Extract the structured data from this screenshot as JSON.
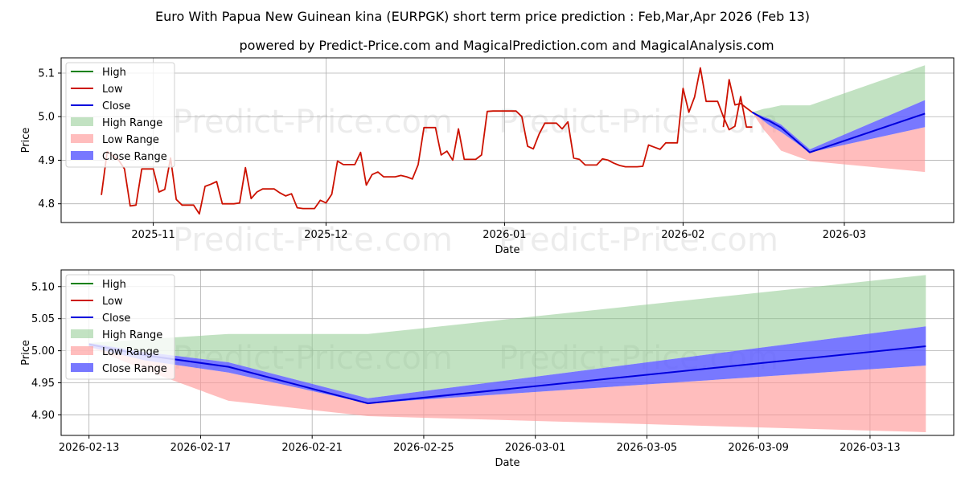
{
  "title": "Euro With Papua New Guinean kina (EURPGK) short term price prediction : Feb,Mar,Apr 2026 (Feb 13)",
  "subtitle": "powered by Predict-Price.com and MagicalPrediction.com and MagicalAnalysis.com",
  "watermark": "Predict-Price.com",
  "colors": {
    "high": "#008000",
    "low": "#cc1100",
    "close": "#0000dd",
    "high_range": "#8fcb8f",
    "low_range": "#ff9a9a",
    "close_range": "#6060ff"
  },
  "chart_data": [
    {
      "type": "line",
      "panel": "top",
      "xlabel": "Date",
      "ylabel": "Price",
      "x_range": [
        "2025-10-16",
        "2026-03-20"
      ],
      "ylim": [
        4.757,
        5.135
      ],
      "yticks": [
        4.8,
        4.9,
        5.0,
        5.1
      ],
      "ytick_labels": [
        "4.8",
        "4.9",
        "5.0",
        "5.1"
      ],
      "xticks": [
        "2025-11-01",
        "2025-12-01",
        "2026-01-01",
        "2026-02-01",
        "2026-03-01"
      ],
      "xtick_labels": [
        "2025-11",
        "2025-12",
        "2026-01",
        "2026-02",
        "2026-03"
      ],
      "grid": true,
      "legend": {
        "location": "top-left",
        "entries": [
          {
            "label": "High",
            "kind": "line",
            "color_key": "high"
          },
          {
            "label": "Low",
            "kind": "line",
            "color_key": "low"
          },
          {
            "label": "Close",
            "kind": "line",
            "color_key": "close"
          },
          {
            "label": "High Range",
            "kind": "patch",
            "color_key": "high_range"
          },
          {
            "label": "Low Range",
            "kind": "patch",
            "color_key": "low_range"
          },
          {
            "label": "Close Range",
            "kind": "patch",
            "color_key": "close_range"
          }
        ]
      },
      "history": {
        "x": [
          "2025-10-23",
          "2025-10-24",
          "2025-10-25",
          "2025-10-26",
          "2025-10-27",
          "2025-10-28",
          "2025-10-29",
          "2025-10-30",
          "2025-10-31",
          "2025-11-01",
          "2025-11-02",
          "2025-11-03",
          "2025-11-04",
          "2025-11-05",
          "2025-11-06",
          "2025-11-07",
          "2025-11-08",
          "2025-11-09",
          "2025-11-10",
          "2025-11-11",
          "2025-11-12",
          "2025-11-13",
          "2025-11-14",
          "2025-11-15",
          "2025-11-16",
          "2025-11-17",
          "2025-11-18",
          "2025-11-19",
          "2025-11-20",
          "2025-11-21",
          "2025-11-22",
          "2025-11-23",
          "2025-11-24",
          "2025-11-25",
          "2025-11-26",
          "2025-11-27",
          "2025-11-28",
          "2025-11-29",
          "2025-11-30",
          "2025-12-01",
          "2025-12-02",
          "2025-12-03",
          "2025-12-04",
          "2025-12-05",
          "2025-12-06",
          "2025-12-07",
          "2025-12-08",
          "2025-12-09",
          "2025-12-10",
          "2025-12-11",
          "2025-12-12",
          "2025-12-13",
          "2025-12-14",
          "2025-12-15",
          "2025-12-16",
          "2025-12-17",
          "2025-12-18",
          "2025-12-19",
          "2025-12-20",
          "2025-12-21",
          "2025-12-22",
          "2025-12-23",
          "2025-12-24",
          "2025-12-25",
          "2025-12-26",
          "2025-12-27",
          "2025-12-28",
          "2025-12-29",
          "2025-12-30",
          "2025-12-31",
          "2026-01-01",
          "2026-01-02",
          "2026-01-03",
          "2026-01-04",
          "2026-01-05",
          "2026-01-06",
          "2026-01-07",
          "2026-01-08",
          "2026-01-09",
          "2026-01-10",
          "2026-01-11",
          "2026-01-12",
          "2026-01-13",
          "2026-01-14",
          "2026-01-15",
          "2026-01-16",
          "2026-01-17",
          "2026-01-18",
          "2026-01-19",
          "2026-01-20",
          "2026-01-21",
          "2026-01-22",
          "2026-01-23",
          "2026-01-24",
          "2026-01-25",
          "2026-01-26",
          "2026-01-27",
          "2026-01-28",
          "2026-01-29",
          "2026-01-30",
          "2026-01-31",
          "2026-02-01",
          "2026-02-02",
          "2026-02-03",
          "2026-02-04",
          "2026-02-05",
          "2026-02-06",
          "2026-02-07",
          "2026-02-08",
          "2026-02-09",
          "2026-02-10",
          "2026-02-11",
          "2026-02-12",
          "2026-02-13"
        ],
        "low": [
          4.82,
          4.92,
          4.91,
          4.9,
          4.88,
          4.795,
          4.797,
          4.88,
          4.88,
          4.88,
          4.827,
          4.833,
          4.905,
          4.81,
          4.797,
          4.797,
          4.797,
          4.777,
          4.84,
          4.845,
          4.851,
          4.8,
          4.8,
          4.8,
          4.802,
          4.883,
          4.812,
          4.827,
          4.834,
          4.834,
          4.834,
          4.825,
          4.818,
          4.823,
          4.791,
          4.789,
          4.789,
          4.789,
          4.808,
          4.802,
          4.822,
          4.898,
          4.89,
          4.89,
          4.89,
          4.918,
          4.843,
          4.867,
          4.873,
          4.862,
          4.862,
          4.862,
          4.865,
          4.862,
          4.857,
          4.89,
          4.975,
          4.975,
          4.975,
          4.912,
          4.921,
          4.9,
          4.972,
          4.902,
          4.902,
          4.902,
          4.912,
          5.012,
          5.013,
          5.013,
          5.013,
          5.013,
          5.013,
          5.0,
          4.932,
          4.926,
          4.96,
          4.985,
          4.985,
          4.985,
          4.972,
          4.988,
          4.905,
          4.902,
          4.889,
          4.889,
          4.889,
          4.903,
          4.9,
          4.893,
          4.888,
          4.885,
          4.885,
          4.885,
          4.886,
          4.935,
          4.93,
          4.925,
          4.94,
          4.94,
          4.94,
          5.065,
          5.01,
          5.045,
          5.112,
          5.035,
          5.035,
          5.035,
          5.0,
          4.97,
          4.978,
          5.046,
          4.976,
          4.976
        ],
        "low_tail": {
          "x": [
            "2026-02-08",
            "2026-02-09",
            "2026-02-10",
            "2026-02-11",
            "2026-02-12",
            "2026-02-13"
          ],
          "values": [
            4.976,
            5.085,
            5.027,
            5.03,
            5.02,
            5.01
          ]
        }
      },
      "forecast": {
        "x": [
          "2026-02-13",
          "2026-02-15",
          "2026-02-16",
          "2026-02-18",
          "2026-02-23",
          "2026-03-15"
        ],
        "close": [
          5.01,
          4.995,
          4.99,
          4.975,
          4.918,
          5.007
        ],
        "close_upper": [
          5.01,
          5.0,
          4.995,
          4.982,
          4.925,
          5.038
        ],
        "close_lower": [
          5.01,
          4.99,
          4.98,
          4.965,
          4.918,
          4.976
        ],
        "high_upper": [
          5.01,
          5.018,
          5.02,
          5.026,
          5.026,
          5.118
        ],
        "low_lower": [
          5.01,
          4.97,
          4.955,
          4.922,
          4.898,
          4.873
        ]
      }
    },
    {
      "type": "line",
      "panel": "bottom",
      "xlabel": "Date",
      "ylabel": "Price",
      "x_range": [
        "2026-02-12",
        "2026-03-16"
      ],
      "ylim": [
        4.868,
        5.126
      ],
      "yticks": [
        4.9,
        4.95,
        5.0,
        5.05,
        5.1
      ],
      "ytick_labels": [
        "4.90",
        "4.95",
        "5.00",
        "5.05",
        "5.10"
      ],
      "xticks": [
        "2026-02-13",
        "2026-02-17",
        "2026-02-21",
        "2026-02-25",
        "2026-03-01",
        "2026-03-05",
        "2026-03-09",
        "2026-03-13"
      ],
      "xtick_labels": [
        "2026-02-13",
        "2026-02-17",
        "2026-02-21",
        "2026-02-25",
        "2026-03-01",
        "2026-03-05",
        "2026-03-09",
        "2026-03-13"
      ],
      "grid": true,
      "legend": {
        "location": "top-left",
        "entries": [
          {
            "label": "High",
            "kind": "line",
            "color_key": "high"
          },
          {
            "label": "Low",
            "kind": "line",
            "color_key": "low"
          },
          {
            "label": "Close",
            "kind": "line",
            "color_key": "close"
          },
          {
            "label": "High Range",
            "kind": "patch",
            "color_key": "high_range"
          },
          {
            "label": "Low Range",
            "kind": "patch",
            "color_key": "low_range"
          },
          {
            "label": "Close Range",
            "kind": "patch",
            "color_key": "close_range"
          }
        ]
      },
      "forecast": {
        "x": [
          "2026-02-13",
          "2026-02-15",
          "2026-02-18",
          "2026-02-23",
          "2026-03-15"
        ],
        "close": [
          5.01,
          4.993,
          4.975,
          4.918,
          5.007
        ],
        "close_upper": [
          5.012,
          4.998,
          4.982,
          4.926,
          5.038
        ],
        "close_lower": [
          5.006,
          4.985,
          4.966,
          4.918,
          4.977
        ],
        "high_upper": [
          5.012,
          5.018,
          5.026,
          5.026,
          5.118
        ],
        "low_lower": [
          5.006,
          4.97,
          4.922,
          4.898,
          4.873
        ]
      }
    }
  ]
}
